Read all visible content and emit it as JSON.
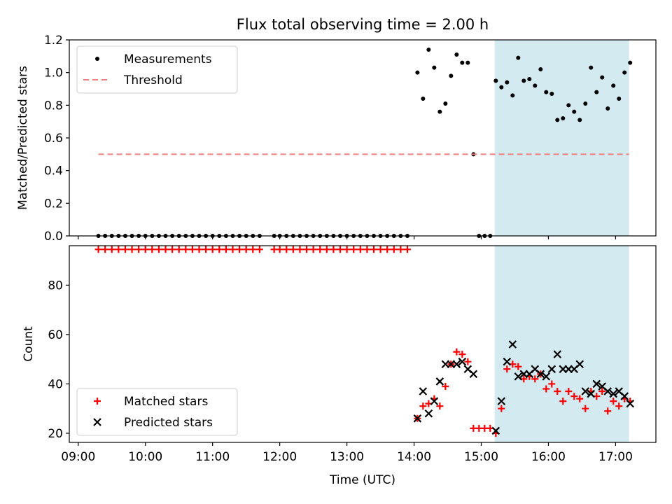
{
  "chart_data": [
    {
      "type": "scatter",
      "title": "Flux total observing time = 2.00 h",
      "ylabel": "Matched/Predicted stars",
      "xlabel": "",
      "ylim": [
        0,
        1.2
      ],
      "yticks": [
        0.0,
        0.2,
        0.4,
        0.6,
        0.8,
        1.0,
        1.2
      ],
      "ytick_labels": [
        "0.0",
        "0.2",
        "0.4",
        "0.6",
        "0.8",
        "1.0",
        "1.2"
      ],
      "xlim": [
        "08:52",
        "17:36"
      ],
      "highlight_span": [
        "15:12",
        "17:12"
      ],
      "highlight_color": "#d3eaf1",
      "legend_position": "upper-left",
      "series": [
        {
          "name": "Measurements",
          "kind": "points",
          "color": "#000000",
          "x": [
            "09:18",
            "09:24",
            "09:30",
            "09:36",
            "09:42",
            "09:48",
            "09:54",
            "10:00",
            "10:06",
            "10:12",
            "10:18",
            "10:24",
            "10:30",
            "10:36",
            "10:42",
            "10:48",
            "10:54",
            "11:00",
            "11:06",
            "11:12",
            "11:18",
            "11:24",
            "11:30",
            "11:36",
            "11:42",
            "11:55",
            "12:00",
            "12:06",
            "12:12",
            "12:18",
            "12:24",
            "12:30",
            "12:36",
            "12:42",
            "12:48",
            "12:54",
            "13:00",
            "13:06",
            "13:12",
            "13:18",
            "13:24",
            "13:30",
            "13:36",
            "13:42",
            "13:48",
            "13:54",
            "14:03",
            "14:08",
            "14:13",
            "14:18",
            "14:23",
            "14:28",
            "14:33",
            "14:38",
            "14:43",
            "14:48",
            "14:53",
            "14:58",
            "15:03",
            "15:08",
            "15:13",
            "15:18",
            "15:23",
            "15:28",
            "15:33",
            "15:38",
            "15:43",
            "15:48",
            "15:53",
            "15:58",
            "16:03",
            "16:08",
            "16:13",
            "16:18",
            "16:23",
            "16:28",
            "16:33",
            "16:38",
            "16:43",
            "16:48",
            "16:53",
            "16:58",
            "17:03",
            "17:08",
            "17:13"
          ],
          "values": [
            0,
            0,
            0,
            0,
            0,
            0,
            0,
            0,
            0,
            0,
            0,
            0,
            0,
            0,
            0,
            0,
            0,
            0,
            0,
            0,
            0,
            0,
            0,
            0,
            0,
            0,
            0,
            0,
            0,
            0,
            0,
            0,
            0,
            0,
            0,
            0,
            0,
            0,
            0,
            0,
            0,
            0,
            0,
            0,
            0,
            0,
            1.0,
            0.84,
            1.14,
            1.03,
            0.76,
            0.81,
            0.98,
            1.11,
            1.06,
            1.06,
            0.5,
            0,
            0,
            0,
            0.95,
            0.91,
            0.94,
            0.86,
            1.09,
            0.95,
            0.96,
            0.92,
            1.02,
            0.88,
            0.87,
            0.71,
            0.72,
            0.8,
            0.76,
            0.71,
            0.81,
            1.03,
            0.88,
            0.97,
            0.78,
            0.92,
            0.84,
            1.0,
            1.06
          ]
        },
        {
          "name": "Threshold",
          "kind": "dashed-line",
          "color": "#f08080",
          "x": [
            "09:18",
            "17:12"
          ],
          "values": [
            0.5,
            0.5
          ]
        }
      ]
    },
    {
      "type": "scatter",
      "title": "",
      "ylabel": "Count",
      "xlabel": "Time (UTC)",
      "ylim": [
        16.3,
        96
      ],
      "yticks": [
        20,
        40,
        60,
        80
      ],
      "ytick_labels": [
        "20",
        "40",
        "60",
        "80"
      ],
      "xlim": [
        "08:52",
        "17:36"
      ],
      "xticks": [
        "09:00",
        "10:00",
        "11:00",
        "12:00",
        "13:00",
        "14:00",
        "15:00",
        "16:00",
        "17:00"
      ],
      "xtick_labels": [
        "09:00",
        "10:00",
        "11:00",
        "12:00",
        "13:00",
        "14:00",
        "15:00",
        "16:00",
        "17:00"
      ],
      "highlight_span": [
        "15:12",
        "17:12"
      ],
      "highlight_color": "#d3eaf1",
      "legend_position": "lower-left",
      "series": [
        {
          "name": "Matched stars",
          "kind": "plus",
          "color": "#ff0000",
          "x": [
            "09:18",
            "09:24",
            "09:30",
            "09:36",
            "09:42",
            "09:48",
            "09:54",
            "10:00",
            "10:06",
            "10:12",
            "10:18",
            "10:24",
            "10:30",
            "10:36",
            "10:42",
            "10:48",
            "10:54",
            "11:00",
            "11:06",
            "11:12",
            "11:18",
            "11:24",
            "11:30",
            "11:36",
            "11:42",
            "11:55",
            "12:00",
            "12:06",
            "12:12",
            "12:18",
            "12:24",
            "12:30",
            "12:36",
            "12:42",
            "12:48",
            "12:54",
            "13:00",
            "13:06",
            "13:12",
            "13:18",
            "13:24",
            "13:30",
            "13:36",
            "13:42",
            "13:48",
            "13:54",
            "14:03",
            "14:08",
            "14:13",
            "14:18",
            "14:23",
            "14:28",
            "14:33",
            "14:38",
            "14:43",
            "14:48",
            "14:53",
            "14:58",
            "15:03",
            "15:08",
            "15:13",
            "15:18",
            "15:23",
            "15:28",
            "15:33",
            "15:38",
            "15:43",
            "15:48",
            "15:53",
            "15:58",
            "16:03",
            "16:08",
            "16:13",
            "16:18",
            "16:23",
            "16:28",
            "16:33",
            "16:38",
            "16:43",
            "16:48",
            "16:53",
            "16:58",
            "17:03",
            "17:08",
            "17:13"
          ],
          "values": [
            94.5,
            94.5,
            94.5,
            94.5,
            94.5,
            94.5,
            94.5,
            94.5,
            94.5,
            94.5,
            94.5,
            94.5,
            94.5,
            94.5,
            94.5,
            94.5,
            94.5,
            94.5,
            94.5,
            94.5,
            94.5,
            94.5,
            94.5,
            94.5,
            94.5,
            94.5,
            94.5,
            94.5,
            94.5,
            94.5,
            94.5,
            94.5,
            94.5,
            94.5,
            94.5,
            94.5,
            94.5,
            94.5,
            94.5,
            94.5,
            94.5,
            94.5,
            94.5,
            94.5,
            94.5,
            94.5,
            26,
            31,
            32,
            34,
            31,
            39,
            48,
            53,
            52,
            49,
            22,
            22,
            22,
            22,
            20,
            30,
            46,
            48,
            47,
            42,
            43,
            42,
            44,
            38,
            40,
            37,
            33,
            37,
            35,
            34,
            30,
            37,
            35,
            37,
            29,
            33,
            31,
            34,
            33
          ]
        },
        {
          "name": "Predicted stars",
          "kind": "cross",
          "color": "#000000",
          "x": [
            "14:03",
            "14:08",
            "14:13",
            "14:18",
            "14:23",
            "14:28",
            "14:33",
            "14:38",
            "14:43",
            "14:48",
            "14:53",
            "15:13",
            "15:18",
            "15:23",
            "15:28",
            "15:33",
            "15:38",
            "15:43",
            "15:48",
            "15:53",
            "15:58",
            "16:03",
            "16:08",
            "16:13",
            "16:18",
            "16:23",
            "16:28",
            "16:33",
            "16:38",
            "16:43",
            "16:48",
            "16:53",
            "16:58",
            "17:03",
            "17:08",
            "17:13"
          ],
          "values": [
            26,
            37,
            28,
            33,
            41,
            48,
            48,
            48,
            49,
            46,
            44,
            21,
            33,
            49,
            56,
            43,
            44,
            44,
            46,
            44,
            43,
            46,
            52,
            46,
            46,
            46,
            48,
            37,
            36,
            40,
            39,
            37,
            36,
            37,
            35,
            32
          ]
        }
      ]
    }
  ]
}
